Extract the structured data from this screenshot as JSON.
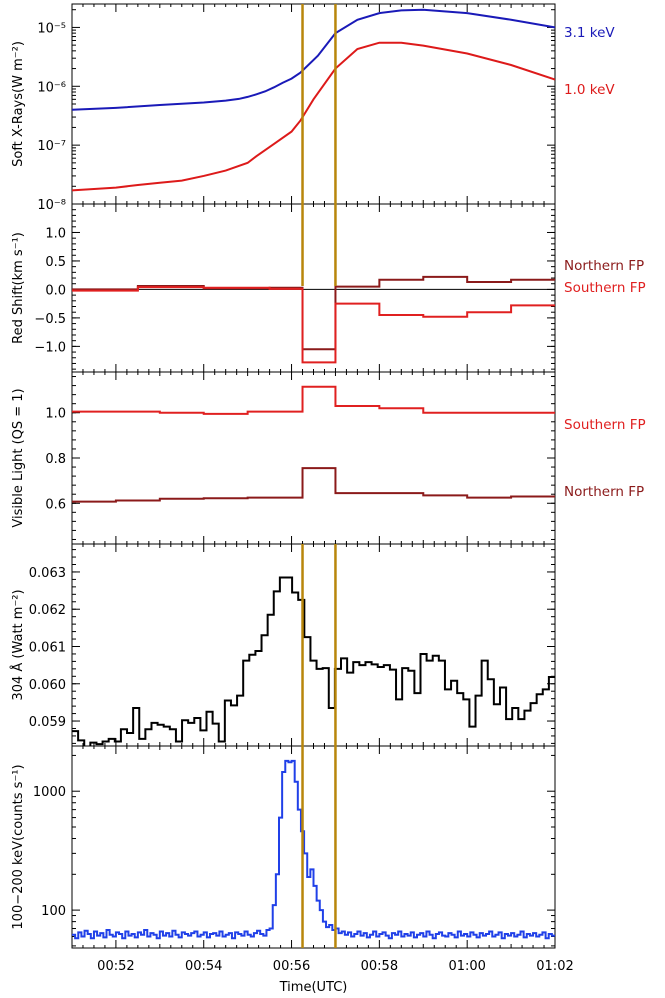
{
  "chart_data": [
    {
      "type": "line",
      "ylabel": "Soft X-Rays(W m⁻²)",
      "yscale": "log",
      "ylim": [
        1e-08,
        2.5e-05
      ],
      "yticks": [
        1e-08,
        1e-07,
        1e-06,
        1e-05
      ],
      "yticklabels": [
        "10⁻⁸",
        "10⁻⁷",
        "10⁻⁶",
        "10⁻⁵"
      ],
      "series": [
        {
          "name": "3.1 keV",
          "color": "#1a1ab8",
          "x": [
            0,
            1,
            2,
            3,
            3.5,
            3.8,
            4.0,
            4.2,
            4.4,
            4.6,
            4.8,
            5.0,
            5.2,
            5.6,
            6.0,
            6.5,
            7.0,
            7.5,
            8.0,
            9.0,
            10.0,
            11.0
          ],
          "y": [
            4e-07,
            4.3e-07,
            4.8e-07,
            5.3e-07,
            5.7e-07,
            6.1e-07,
            6.6e-07,
            7.3e-07,
            8.2e-07,
            9.6e-07,
            1.15e-06,
            1.35e-06,
            1.7e-06,
            3.3e-06,
            8e-06,
            1.35e-05,
            1.75e-05,
            1.95e-05,
            2e-05,
            1.75e-05,
            1.35e-05,
            1e-05
          ]
        },
        {
          "name": "1.0 keV",
          "color": "#dd1a1a",
          "x": [
            0,
            0.5,
            1,
            1.5,
            2,
            2.5,
            3.0,
            3.5,
            4.0,
            4.2,
            4.6,
            5.0,
            5.2,
            5.5,
            6.0,
            6.5,
            7.0,
            7.5,
            8.0,
            9.0,
            10.0,
            11.0
          ],
          "y": [
            1.7e-08,
            1.8e-08,
            1.9e-08,
            2.1e-08,
            2.3e-08,
            2.5e-08,
            3e-08,
            3.7e-08,
            5e-08,
            6.5e-08,
            1.05e-07,
            1.7e-07,
            2.6e-07,
            6e-07,
            2e-06,
            4.3e-06,
            5.5e-06,
            5.5e-06,
            4.9e-06,
            3.6e-06,
            2.3e-06,
            1.3e-06
          ]
        }
      ]
    },
    {
      "type": "line",
      "step": true,
      "ylabel": "Red Shift(km s⁻¹)",
      "ylim": [
        -1.45,
        1.5
      ],
      "yticks": [
        -1.0,
        -0.5,
        0.0,
        0.5,
        1.0
      ],
      "yticklabels": [
        "−1.0",
        "−0.5",
        "0.0",
        "0.5",
        "1.0"
      ],
      "zero_line": true,
      "bin_edges": [
        0,
        1.5,
        3.0,
        4.5,
        5.25,
        6.0,
        7.0,
        8.0,
        9.0,
        10.0,
        11.0
      ],
      "series": [
        {
          "name": "Northern FP",
          "color": "#8b1a1a",
          "values": [
            0.0,
            0.06,
            0.02,
            0.03,
            -1.05,
            0.05,
            0.17,
            0.22,
            0.13,
            0.17
          ]
        },
        {
          "name": "Southern FP",
          "color": "#e02020",
          "values": [
            -0.02,
            0.04,
            0.03,
            0.01,
            -1.28,
            -0.25,
            -0.45,
            -0.48,
            -0.4,
            -0.28
          ]
        }
      ]
    },
    {
      "type": "line",
      "step": true,
      "ylabel": "Visible Light (QS = 1)",
      "ylim": [
        0.42,
        1.18
      ],
      "yticks": [
        0.6,
        0.8,
        1.0
      ],
      "yticklabels": [
        "0.6",
        "0.8",
        "1.0"
      ],
      "bin_edges": [
        0,
        1.0,
        2.0,
        3.0,
        4.0,
        5.25,
        6.0,
        7.0,
        8.0,
        9.0,
        10.0,
        11.0
      ],
      "series": [
        {
          "name": "Southern FP",
          "color": "#e02020",
          "values": [
            1.005,
            1.005,
            1.0,
            0.995,
            1.005,
            1.115,
            1.03,
            1.02,
            1.0,
            1.0,
            1.0
          ]
        },
        {
          "name": "Northern FP",
          "color": "#8b1a1a",
          "values": [
            0.607,
            0.612,
            0.62,
            0.622,
            0.625,
            0.755,
            0.645,
            0.645,
            0.635,
            0.625,
            0.63
          ]
        }
      ]
    },
    {
      "type": "line",
      "step": true,
      "ylabel": "304 Å (Watt m⁻²)",
      "ylim": [
        0.05833,
        0.06375
      ],
      "yticks": [
        0.059,
        0.06,
        0.061,
        0.062,
        0.063
      ],
      "yticklabels": [
        "0.059",
        "0.060",
        "0.061",
        "0.062",
        "0.063"
      ],
      "bin_edges": [
        0,
        11.0
      ],
      "series": [
        {
          "name": "",
          "color": "#000000",
          "values": [
            0.05873,
            0.05848,
            0.0583,
            0.05842,
            0.05838,
            0.05845,
            0.05852,
            0.05845,
            0.05878,
            0.05868,
            0.05935,
            0.05852,
            0.05878,
            0.05895,
            0.0589,
            0.05885,
            0.05878,
            0.05845,
            0.05902,
            0.05895,
            0.05908,
            0.05875,
            0.05925,
            0.05893,
            0.05845,
            0.05955,
            0.05942,
            0.05968,
            0.06062,
            0.06078,
            0.06088,
            0.0613,
            0.06185,
            0.06248,
            0.06285,
            0.06285,
            0.06245,
            0.06225,
            0.06125,
            0.06062,
            0.0604,
            0.06042,
            0.05935,
            0.0604,
            0.06068,
            0.0603,
            0.06058,
            0.0605,
            0.06058,
            0.06052,
            0.06045,
            0.0605,
            0.06038,
            0.05958,
            0.06042,
            0.06035,
            0.05975,
            0.0608,
            0.06062,
            0.06075,
            0.06062,
            0.05985,
            0.06008,
            0.05975,
            0.05958,
            0.05885,
            0.05968,
            0.06062,
            0.06012,
            0.05945,
            0.0599,
            0.05905,
            0.05935,
            0.05905,
            0.05928,
            0.05948,
            0.05972,
            0.05985,
            0.06018
          ]
        }
      ]
    },
    {
      "type": "line",
      "step": true,
      "xlabel": "Time(UTC)",
      "ylabel": "100−200 keV(counts s⁻¹)",
      "yscale": "log",
      "ylim": [
        48,
        2400
      ],
      "yticks": [
        100,
        1000
      ],
      "yticklabels": [
        "100",
        "1000"
      ],
      "xticks": [
        1,
        3,
        5,
        7,
        9,
        11
      ],
      "xticklabels": [
        "00:52",
        "00:54",
        "00:56",
        "00:58",
        "01:00",
        "01:02"
      ],
      "bin_edges": [
        0,
        11.0
      ],
      "series": [
        {
          "name": "",
          "color": "#2040e8",
          "values": [
            62,
            58,
            65,
            60,
            67,
            63,
            58,
            66,
            61,
            64,
            59,
            68,
            62,
            60,
            65,
            63,
            58,
            66,
            61,
            63,
            59,
            65,
            62,
            68,
            60,
            64,
            62,
            58,
            66,
            61,
            64,
            60,
            67,
            62,
            59,
            65,
            63,
            61,
            64,
            66,
            60,
            62,
            65,
            59,
            63,
            64,
            61,
            66,
            60,
            62,
            64,
            58,
            65,
            63,
            61,
            66,
            62,
            60,
            64,
            67,
            63,
            61,
            68,
            70,
            110,
            200,
            600,
            1450,
            1800,
            1750,
            1800,
            1200,
            700,
            460,
            300,
            190,
            220,
            160,
            120,
            100,
            80,
            72,
            75,
            68,
            70,
            64,
            66,
            62,
            65,
            60,
            63,
            66,
            61,
            64,
            59,
            62,
            66,
            60,
            63,
            65,
            61,
            58,
            64,
            62,
            66,
            60,
            63,
            61,
            65,
            59,
            62,
            64,
            60,
            66,
            62,
            58,
            63,
            65,
            61,
            60,
            64,
            62,
            59,
            66,
            61,
            63,
            60,
            65,
            62,
            59,
            64,
            61,
            63,
            66,
            60,
            62,
            65,
            58,
            63,
            61,
            64,
            60,
            62,
            66,
            59,
            63,
            61,
            64,
            60,
            62,
            65,
            58,
            63,
            61
          ]
        }
      ]
    }
  ],
  "flare_markers": {
    "color": "#b8860b",
    "x": [
      5.25,
      6.0
    ]
  }
}
